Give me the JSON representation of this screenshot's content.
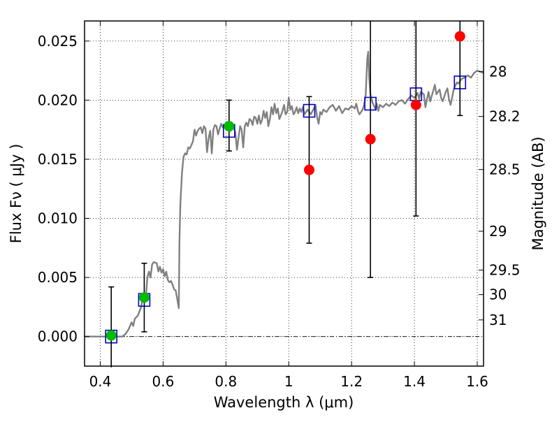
{
  "chart_data": {
    "type": "scatter",
    "xlabel": "Wavelength  λ (μm)",
    "ylabel": "Flux  Fν  ( μJy )",
    "y2label": "Magnitude (AB)",
    "xlim": [
      0.35,
      1.62
    ],
    "ylim": [
      -0.0025,
      0.0267
    ],
    "grid": true,
    "x_ticks": [
      {
        "value": 0.4,
        "label": "0.4"
      },
      {
        "value": 0.6,
        "label": "0.6"
      },
      {
        "value": 0.8,
        "label": "0.8"
      },
      {
        "value": 1.0,
        "label": "1"
      },
      {
        "value": 1.2,
        "label": "1.2"
      },
      {
        "value": 1.4,
        "label": "1.4"
      },
      {
        "value": 1.6,
        "label": "1.6"
      }
    ],
    "y_ticks": [
      {
        "value": 0.0,
        "label": "0.000"
      },
      {
        "value": 0.005,
        "label": "0.005"
      },
      {
        "value": 0.01,
        "label": "0.010"
      },
      {
        "value": 0.015,
        "label": "0.015"
      },
      {
        "value": 0.02,
        "label": "0.020"
      },
      {
        "value": 0.025,
        "label": "0.025"
      }
    ],
    "y2_ticks": [
      {
        "flux": 0.02242,
        "label": "28"
      },
      {
        "flux": 0.01862,
        "label": "28.2"
      },
      {
        "flux": 0.01413,
        "label": "28.5"
      },
      {
        "flux": 0.00891,
        "label": "29"
      },
      {
        "flux": 0.00562,
        "label": "29.5"
      },
      {
        "flux": 0.00355,
        "label": "30"
      },
      {
        "flux": 0.00141,
        "label": "31"
      }
    ],
    "model_color": "#808080",
    "template_sed": [
      [
        0.35,
        0.0
      ],
      [
        0.47,
        0.0
      ],
      [
        0.48,
        0.0002
      ],
      [
        0.49,
        0.0006
      ],
      [
        0.5,
        0.0012
      ],
      [
        0.505,
        0.0009
      ],
      [
        0.51,
        0.0015
      ],
      [
        0.52,
        0.0018
      ],
      [
        0.53,
        0.0025
      ],
      [
        0.535,
        0.0032
      ],
      [
        0.54,
        0.0034
      ],
      [
        0.545,
        0.0033
      ],
      [
        0.55,
        0.005
      ],
      [
        0.555,
        0.0055
      ],
      [
        0.56,
        0.005
      ],
      [
        0.565,
        0.0061
      ],
      [
        0.57,
        0.0063
      ],
      [
        0.58,
        0.0062
      ],
      [
        0.585,
        0.0055
      ],
      [
        0.59,
        0.0059
      ],
      [
        0.595,
        0.0054
      ],
      [
        0.6,
        0.0057
      ],
      [
        0.605,
        0.0051
      ],
      [
        0.61,
        0.0055
      ],
      [
        0.615,
        0.0048
      ],
      [
        0.62,
        0.0046
      ],
      [
        0.625,
        0.0047
      ],
      [
        0.63,
        0.0044
      ],
      [
        0.635,
        0.004
      ],
      [
        0.64,
        0.0039
      ],
      [
        0.645,
        0.0032
      ],
      [
        0.65,
        0.0024
      ],
      [
        0.652,
        0.008
      ],
      [
        0.655,
        0.0112
      ],
      [
        0.66,
        0.0138
      ],
      [
        0.665,
        0.0152
      ],
      [
        0.67,
        0.0155
      ],
      [
        0.675,
        0.0154
      ],
      [
        0.68,
        0.016
      ],
      [
        0.685,
        0.0159
      ],
      [
        0.69,
        0.0162
      ],
      [
        0.695,
        0.0165
      ],
      [
        0.7,
        0.0175
      ],
      [
        0.705,
        0.017
      ],
      [
        0.71,
        0.0174
      ],
      [
        0.715,
        0.0176
      ],
      [
        0.72,
        0.0177
      ],
      [
        0.725,
        0.0172
      ],
      [
        0.73,
        0.0178
      ],
      [
        0.735,
        0.0176
      ],
      [
        0.74,
        0.0156
      ],
      [
        0.745,
        0.0168
      ],
      [
        0.75,
        0.0174
      ],
      [
        0.755,
        0.0155
      ],
      [
        0.76,
        0.0175
      ],
      [
        0.765,
        0.0179
      ],
      [
        0.77,
        0.0178
      ],
      [
        0.775,
        0.0171
      ],
      [
        0.78,
        0.0176
      ],
      [
        0.785,
        0.018
      ],
      [
        0.79,
        0.0177
      ],
      [
        0.795,
        0.0179
      ],
      [
        0.8,
        0.0178
      ],
      [
        0.805,
        0.0176
      ],
      [
        0.81,
        0.0175
      ],
      [
        0.815,
        0.0174
      ],
      [
        0.82,
        0.0178
      ],
      [
        0.825,
        0.0176
      ],
      [
        0.83,
        0.0173
      ],
      [
        0.835,
        0.0158
      ],
      [
        0.84,
        0.0168
      ],
      [
        0.845,
        0.0178
      ],
      [
        0.85,
        0.0175
      ],
      [
        0.855,
        0.016
      ],
      [
        0.86,
        0.0178
      ],
      [
        0.865,
        0.0181
      ],
      [
        0.87,
        0.0178
      ],
      [
        0.875,
        0.0184
      ],
      [
        0.88,
        0.0183
      ],
      [
        0.885,
        0.0179
      ],
      [
        0.89,
        0.0186
      ],
      [
        0.895,
        0.0185
      ],
      [
        0.9,
        0.018
      ],
      [
        0.905,
        0.0187
      ],
      [
        0.91,
        0.018
      ],
      [
        0.915,
        0.0183
      ],
      [
        0.92,
        0.0191
      ],
      [
        0.925,
        0.0185
      ],
      [
        0.93,
        0.019
      ],
      [
        0.935,
        0.0178
      ],
      [
        0.94,
        0.0184
      ],
      [
        0.945,
        0.0194
      ],
      [
        0.95,
        0.0188
      ],
      [
        0.955,
        0.0197
      ],
      [
        0.96,
        0.0189
      ],
      [
        0.965,
        0.0193
      ],
      [
        0.97,
        0.0184
      ],
      [
        0.975,
        0.0187
      ],
      [
        0.98,
        0.0191
      ],
      [
        0.985,
        0.0196
      ],
      [
        0.99,
        0.0188
      ],
      [
        0.995,
        0.019
      ],
      [
        1.0,
        0.0202
      ],
      [
        1.005,
        0.0192
      ],
      [
        1.01,
        0.0195
      ],
      [
        1.015,
        0.0188
      ],
      [
        1.02,
        0.019
      ],
      [
        1.025,
        0.0194
      ],
      [
        1.03,
        0.0189
      ],
      [
        1.035,
        0.0193
      ],
      [
        1.04,
        0.019
      ],
      [
        1.045,
        0.0194
      ],
      [
        1.05,
        0.0188
      ],
      [
        1.06,
        0.0192
      ],
      [
        1.07,
        0.0188
      ],
      [
        1.08,
        0.0193
      ],
      [
        1.085,
        0.0196
      ],
      [
        1.09,
        0.0186
      ],
      [
        1.095,
        0.018
      ],
      [
        1.1,
        0.019
      ],
      [
        1.105,
        0.0188
      ],
      [
        1.11,
        0.0192
      ],
      [
        1.12,
        0.019
      ],
      [
        1.13,
        0.0194
      ],
      [
        1.14,
        0.0196
      ],
      [
        1.15,
        0.0191
      ],
      [
        1.16,
        0.0195
      ],
      [
        1.17,
        0.0189
      ],
      [
        1.18,
        0.0193
      ],
      [
        1.19,
        0.0192
      ],
      [
        1.2,
        0.0195
      ],
      [
        1.21,
        0.0193
      ],
      [
        1.215,
        0.0197
      ],
      [
        1.22,
        0.0191
      ],
      [
        1.225,
        0.0188
      ],
      [
        1.23,
        0.019
      ],
      [
        1.235,
        0.0192
      ],
      [
        1.24,
        0.0196
      ],
      [
        1.245,
        0.0205
      ],
      [
        1.25,
        0.0235
      ],
      [
        1.253,
        0.0241
      ],
      [
        1.256,
        0.022
      ],
      [
        1.26,
        0.0205
      ],
      [
        1.265,
        0.0199
      ],
      [
        1.27,
        0.0196
      ],
      [
        1.275,
        0.0193
      ],
      [
        1.28,
        0.0197
      ],
      [
        1.285,
        0.0191
      ],
      [
        1.29,
        0.0196
      ],
      [
        1.3,
        0.0194
      ],
      [
        1.31,
        0.0197
      ],
      [
        1.32,
        0.0195
      ],
      [
        1.33,
        0.0198
      ],
      [
        1.34,
        0.0196
      ],
      [
        1.35,
        0.0199
      ],
      [
        1.36,
        0.02
      ],
      [
        1.37,
        0.0197
      ],
      [
        1.38,
        0.0201
      ],
      [
        1.39,
        0.0204
      ],
      [
        1.4,
        0.0202
      ],
      [
        1.41,
        0.0206
      ],
      [
        1.415,
        0.0201
      ],
      [
        1.42,
        0.0207
      ],
      [
        1.43,
        0.0205
      ],
      [
        1.435,
        0.0194
      ],
      [
        1.44,
        0.0201
      ],
      [
        1.445,
        0.0207
      ],
      [
        1.45,
        0.0199
      ],
      [
        1.46,
        0.0208
      ],
      [
        1.465,
        0.0213
      ],
      [
        1.47,
        0.0205
      ],
      [
        1.48,
        0.0209
      ],
      [
        1.485,
        0.0202
      ],
      [
        1.49,
        0.0199
      ],
      [
        1.5,
        0.0207
      ],
      [
        1.505,
        0.021
      ],
      [
        1.51,
        0.0201
      ],
      [
        1.515,
        0.0196
      ],
      [
        1.52,
        0.0202
      ],
      [
        1.525,
        0.0209
      ],
      [
        1.53,
        0.0212
      ],
      [
        1.535,
        0.0215
      ],
      [
        1.54,
        0.0214
      ],
      [
        1.545,
        0.0216
      ],
      [
        1.55,
        0.0218
      ],
      [
        1.56,
        0.0219
      ],
      [
        1.57,
        0.0221
      ],
      [
        1.58,
        0.0219
      ],
      [
        1.59,
        0.0223
      ],
      [
        1.6,
        0.0225
      ],
      [
        1.61,
        0.0224
      ],
      [
        1.62,
        0.0223
      ]
    ],
    "model_boxes": [
      {
        "x": 0.435,
        "y": 0.0
      },
      {
        "x": 0.54,
        "y": 0.0031
      },
      {
        "x": 0.81,
        "y": 0.0174
      },
      {
        "x": 1.065,
        "y": 0.0191
      },
      {
        "x": 1.26,
        "y": 0.0197
      },
      {
        "x": 1.405,
        "y": 0.0205
      },
      {
        "x": 1.545,
        "y": 0.0215
      }
    ],
    "box_color": "#0000cc",
    "observed_points": [
      {
        "x": 0.435,
        "y": 0.0001,
        "err_low": -0.0026,
        "err_high": 0.0042,
        "color": "#00bb00"
      },
      {
        "x": 0.54,
        "y": 0.0033,
        "err_low": 0.0004,
        "err_high": 0.0062,
        "color": "#00bb00"
      },
      {
        "x": 0.81,
        "y": 0.0178,
        "err_low": 0.0157,
        "err_high": 0.02,
        "color": "#00bb00"
      },
      {
        "x": 1.065,
        "y": 0.0141,
        "err_low": 0.0079,
        "err_high": 0.0203,
        "color": "#ff0000"
      },
      {
        "x": 1.26,
        "y": 0.0167,
        "err_low": 0.005,
        "err_high": 0.0267,
        "color": "#ff0000"
      },
      {
        "x": 1.405,
        "y": 0.0196,
        "err_low": 0.0102,
        "err_high": 0.0267,
        "color": "#ff0000"
      },
      {
        "x": 1.545,
        "y": 0.0254,
        "err_low": 0.0187,
        "err_high": 0.0267,
        "color": "#ff0000"
      }
    ]
  }
}
